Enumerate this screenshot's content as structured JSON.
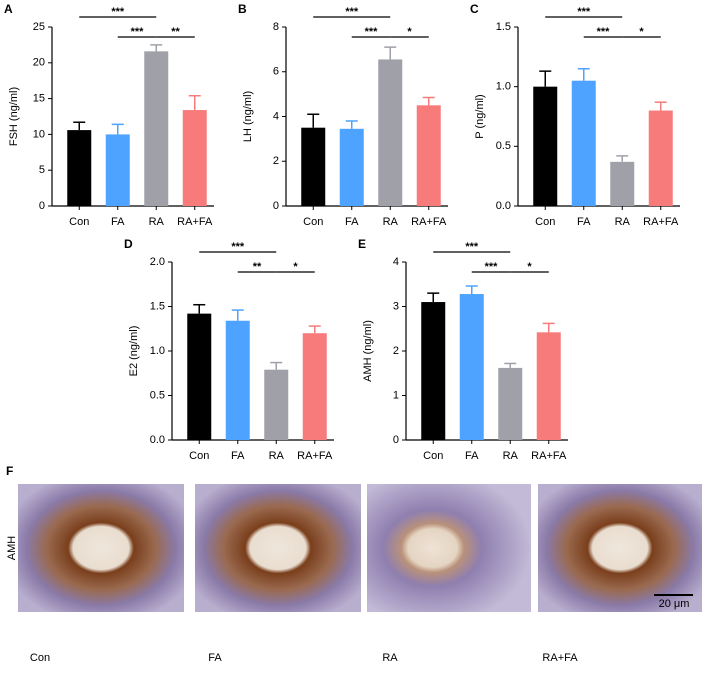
{
  "chart_data": [
    {
      "type": "bar",
      "panel_label": "A",
      "y_label": "FSH (ng/ml)",
      "categories": [
        "Con",
        "FA",
        "RA",
        "RA+FA"
      ],
      "values": [
        10.6,
        10.0,
        21.6,
        13.4
      ],
      "errors": [
        1.1,
        1.4,
        0.9,
        2.0
      ],
      "colors": [
        "#000000",
        "#4da3ff",
        "#a0a0a8",
        "#f77b7b"
      ],
      "ylim": [
        0,
        25
      ],
      "yticks": [
        0,
        5,
        10,
        15,
        20,
        25
      ],
      "significance": [
        {
          "between": [
            "Con",
            "RA"
          ],
          "label": "***"
        },
        {
          "between": [
            "FA",
            "RA"
          ],
          "label": "***"
        },
        {
          "between": [
            "RA",
            "RA+FA"
          ],
          "label": "**"
        }
      ]
    },
    {
      "type": "bar",
      "panel_label": "B",
      "y_label": "LH (ng/ml)",
      "categories": [
        "Con",
        "FA",
        "RA",
        "RA+FA"
      ],
      "values": [
        3.5,
        3.45,
        6.55,
        4.5
      ],
      "errors": [
        0.6,
        0.35,
        0.55,
        0.35
      ],
      "colors": [
        "#000000",
        "#4da3ff",
        "#a0a0a8",
        "#f77b7b"
      ],
      "ylim": [
        0,
        8
      ],
      "yticks": [
        0,
        2,
        4,
        6,
        8
      ],
      "significance": [
        {
          "between": [
            "Con",
            "RA"
          ],
          "label": "***"
        },
        {
          "between": [
            "FA",
            "RA"
          ],
          "label": "***"
        },
        {
          "between": [
            "RA",
            "RA+FA"
          ],
          "label": "*"
        }
      ]
    },
    {
      "type": "bar",
      "panel_label": "C",
      "y_label": "P (ng/ml)",
      "categories": [
        "Con",
        "FA",
        "RA",
        "RA+FA"
      ],
      "values": [
        1.0,
        1.05,
        0.37,
        0.8
      ],
      "errors": [
        0.13,
        0.1,
        0.05,
        0.07
      ],
      "colors": [
        "#000000",
        "#4da3ff",
        "#a0a0a8",
        "#f77b7b"
      ],
      "ylim": [
        0,
        1.5
      ],
      "yticks": [
        {
          "value": 0,
          "label": "0.0"
        },
        0.5,
        {
          "value": 1,
          "label": "1.0"
        },
        1.5
      ],
      "significance": [
        {
          "between": [
            "Con",
            "RA"
          ],
          "label": "***"
        },
        {
          "between": [
            "FA",
            "RA"
          ],
          "label": "***"
        },
        {
          "between": [
            "RA",
            "RA+FA"
          ],
          "label": "*"
        }
      ]
    },
    {
      "type": "bar",
      "panel_label": "D",
      "y_label": "E2 (ng/ml)",
      "categories": [
        "Con",
        "FA",
        "RA",
        "RA+FA"
      ],
      "values": [
        1.42,
        1.34,
        0.79,
        1.2
      ],
      "errors": [
        0.1,
        0.12,
        0.08,
        0.08
      ],
      "colors": [
        "#000000",
        "#4da3ff",
        "#a0a0a8",
        "#f77b7b"
      ],
      "ylim": [
        0,
        2
      ],
      "yticks": [
        {
          "value": 0,
          "label": "0.0"
        },
        0.5,
        {
          "value": 1,
          "label": "1.0"
        },
        1.5,
        {
          "value": 2,
          "label": "2.0"
        }
      ],
      "significance": [
        {
          "between": [
            "Con",
            "RA"
          ],
          "label": "***"
        },
        {
          "between": [
            "FA",
            "RA"
          ],
          "label": "**"
        },
        {
          "between": [
            "RA",
            "RA+FA"
          ],
          "label": "*"
        }
      ]
    },
    {
      "type": "bar",
      "panel_label": "E",
      "y_label": "AMH (ng/ml)",
      "categories": [
        "Con",
        "FA",
        "RA",
        "RA+FA"
      ],
      "values": [
        3.1,
        3.28,
        1.62,
        2.42
      ],
      "errors": [
        0.2,
        0.18,
        0.1,
        0.2
      ],
      "colors": [
        "#000000",
        "#4da3ff",
        "#a0a0a8",
        "#f77b7b"
      ],
      "ylim": [
        0,
        4
      ],
      "yticks": [
        0,
        1,
        2,
        3,
        4
      ],
      "significance": [
        {
          "between": [
            "Con",
            "RA"
          ],
          "label": "***"
        },
        {
          "between": [
            "FA",
            "RA"
          ],
          "label": "***"
        },
        {
          "between": [
            "RA",
            "RA+FA"
          ],
          "label": "*"
        }
      ]
    }
  ],
  "image_panel": {
    "panel_label": "F",
    "row_label": "AMH",
    "captions": [
      "Con",
      "FA",
      "RA",
      "RA+FA"
    ],
    "scale_bar": "20 μm"
  }
}
